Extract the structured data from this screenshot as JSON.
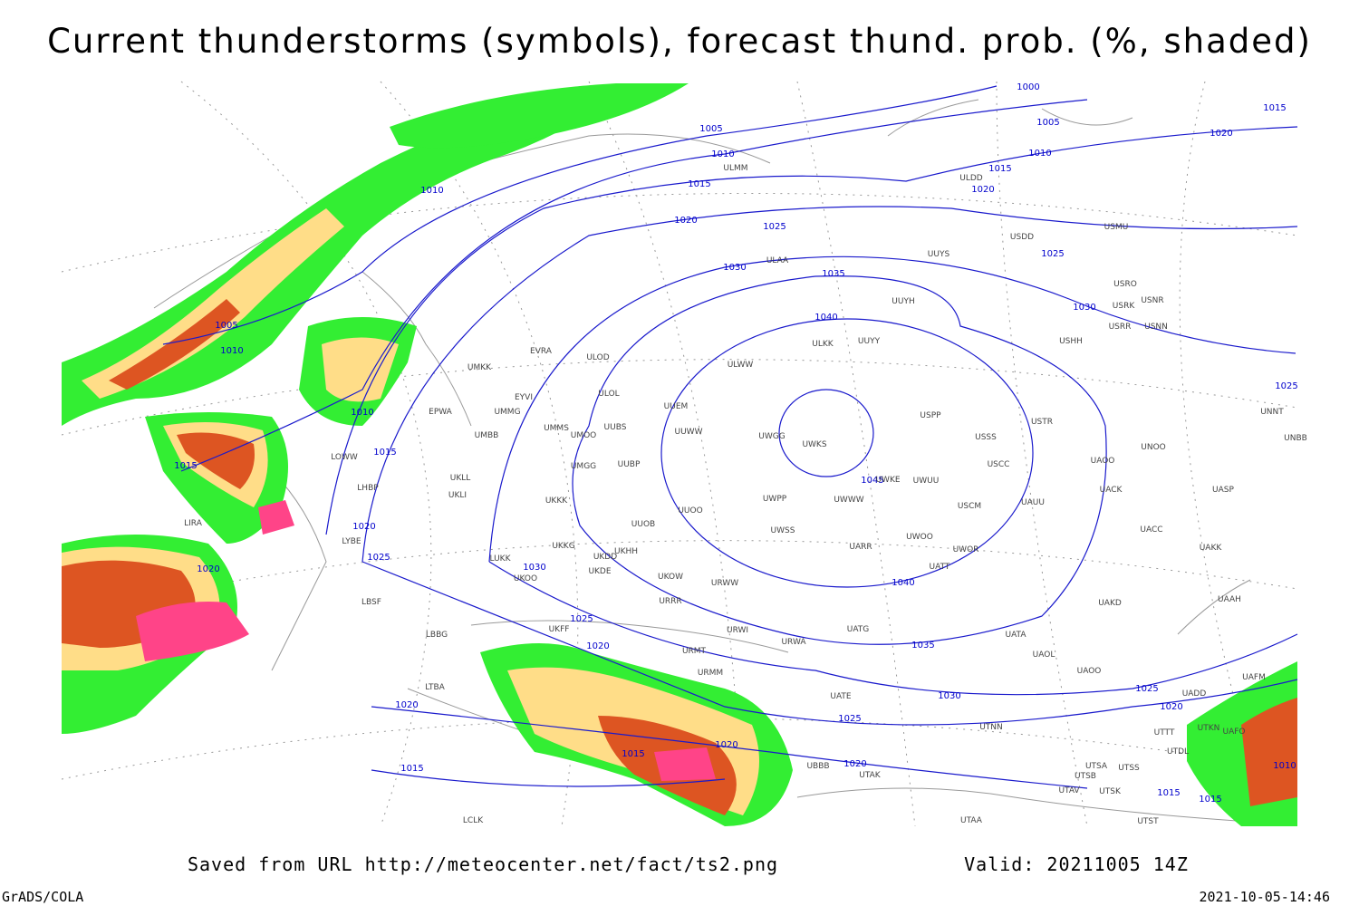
{
  "header": {
    "title": "Current thunderstorms (symbols), forecast thund. prob. (%, shaded)"
  },
  "map": {
    "isobar_labels": [
      1000,
      1005,
      1015,
      1020,
      1010,
      1015,
      1020,
      1025,
      1030,
      1005,
      1010,
      1015,
      1020,
      1025,
      1030,
      1035,
      1040,
      1010,
      1005,
      1010,
      1010,
      1015,
      1015,
      1020,
      1025,
      1020,
      1030,
      1045,
      1040,
      1035,
      1030,
      1025,
      1025,
      1025,
      1025,
      1020,
      1020,
      1020,
      1015,
      1015,
      1020,
      1020,
      1015,
      1015,
      1010
    ],
    "stations": [
      "ULDD",
      "ULMM",
      "USDD",
      "USMU",
      "UUYS",
      "ULAA",
      "UUYH",
      "USRO",
      "USRK",
      "USNR",
      "USRR",
      "USNN",
      "USHH",
      "ULKK",
      "UUYY",
      "ULWW",
      "UUEM",
      "USPP",
      "UUWW",
      "UWGG",
      "UWKS",
      "USSS",
      "USTR",
      "UMMS",
      "UMOO",
      "UUBS",
      "UMBB",
      "UMMG",
      "EYVI",
      "ULOL",
      "ULOD",
      "EVRA",
      "UMKK",
      "EPWA",
      "UUBP",
      "UMGG",
      "UWKE",
      "UWUU",
      "USCC",
      "UAOO",
      "UNOO",
      "UNNT",
      "UNBB",
      "UWPP",
      "UWWW",
      "USCM",
      "UAUU",
      "UACK",
      "UASP",
      "UKKK",
      "UUOO",
      "UUOB",
      "UWSS",
      "UACC",
      "UAKK",
      "UKHH",
      "UKDD",
      "UWOO",
      "UWOR",
      "UARR",
      "UATT",
      "UKDE",
      "UKOW",
      "URWW",
      "UAKD",
      "UAAH",
      "URRR",
      "UATG",
      "URWI",
      "UATA",
      "URWA",
      "UAOL",
      "UAOO",
      "URMT",
      "URMM",
      "UATE",
      "UTNN",
      "UTAK",
      "UTSA",
      "UTSS",
      "UTSB",
      "UTAV",
      "UTSK",
      "UTAA",
      "UTST",
      "UTTT",
      "UTDL",
      "UTKN",
      "UAFO",
      "UAFM",
      "UADD",
      "UBBB",
      "UKFF",
      "UKOO",
      "UKKG",
      "LUKK",
      "LBSF",
      "LBBG",
      "LTBA",
      "LCLK",
      "LHBP",
      "LYBE",
      "LIRA",
      "UKLL",
      "UKLI",
      "LOWW"
    ]
  },
  "footer": {
    "saved": "Saved from URL http://meteocenter.net/fact/ts2.png",
    "valid": "Valid: 20211005 14Z",
    "software": "GrADS/COLA",
    "timestamp": "2021-10-05-14:46"
  }
}
